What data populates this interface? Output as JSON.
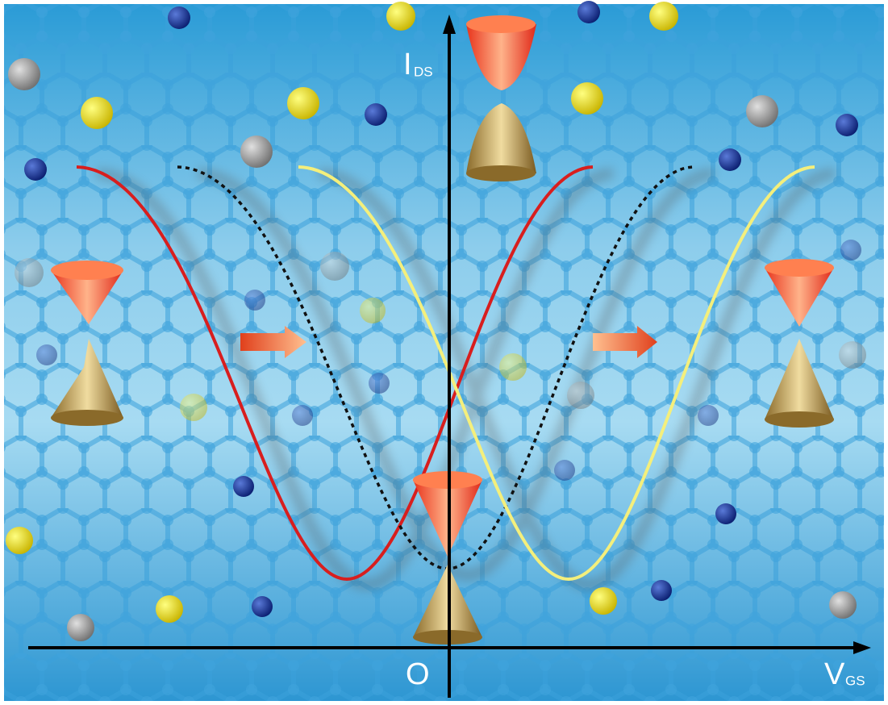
{
  "axes": {
    "y_label": {
      "main": "I",
      "sub": "DS"
    },
    "x_label": {
      "main": "V",
      "sub": "GS"
    },
    "origin": "O"
  }
}
